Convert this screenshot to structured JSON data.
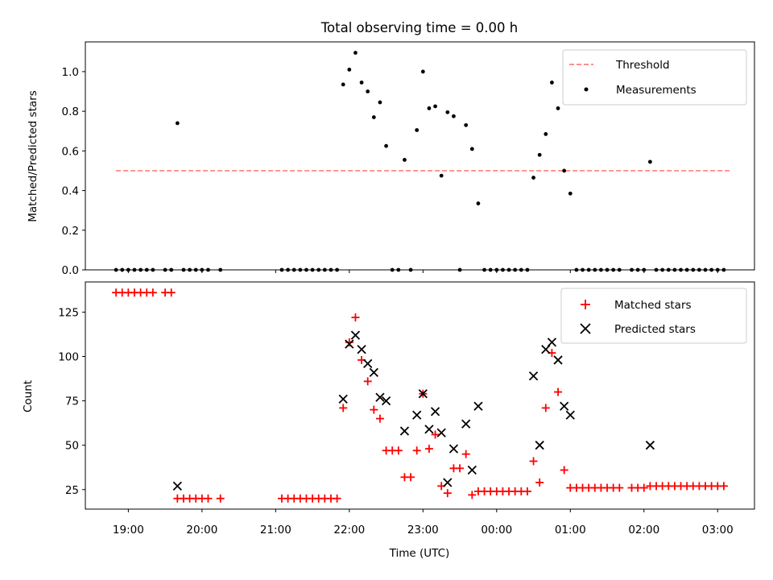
{
  "chart_data": [
    {
      "type": "scatter",
      "title": "Total observing time = 0.00 h",
      "ylabel": "Matched/Predicted stars",
      "ylim": [
        0,
        1.15
      ],
      "yticks": [
        0.0,
        0.2,
        0.4,
        0.6,
        0.8,
        1.0
      ],
      "ytick_labels": [
        "0.0",
        "0.2",
        "0.4",
        "0.6",
        "0.8",
        "1.0"
      ],
      "threshold": {
        "name": "Threshold",
        "value": 0.5,
        "x_start": "18:50",
        "x_end": "03:10",
        "color": "#ff7f7f",
        "style": "dashed"
      },
      "legend": {
        "position": "upper right",
        "entries": [
          "Threshold",
          "Measurements"
        ]
      },
      "series": [
        {
          "name": "Measurements",
          "marker": "dot",
          "color": "#000000",
          "points": [
            [
              "18:50",
              0
            ],
            [
              "18:55",
              0
            ],
            [
              "19:00",
              0
            ],
            [
              "19:05",
              0
            ],
            [
              "19:10",
              0
            ],
            [
              "19:15",
              0
            ],
            [
              "19:20",
              0
            ],
            [
              "19:30",
              0
            ],
            [
              "19:35",
              0
            ],
            [
              "19:40",
              0.74
            ],
            [
              "19:45",
              0
            ],
            [
              "19:50",
              0
            ],
            [
              "19:55",
              0
            ],
            [
              "20:00",
              0
            ],
            [
              "20:05",
              0
            ],
            [
              "20:15",
              0
            ],
            [
              "21:05",
              0
            ],
            [
              "21:10",
              0
            ],
            [
              "21:15",
              0
            ],
            [
              "21:20",
              0
            ],
            [
              "21:25",
              0
            ],
            [
              "21:30",
              0
            ],
            [
              "21:35",
              0
            ],
            [
              "21:40",
              0
            ],
            [
              "21:45",
              0
            ],
            [
              "21:50",
              0
            ],
            [
              "21:55",
              0.935
            ],
            [
              "22:00",
              1.01
            ],
            [
              "22:05",
              1.095
            ],
            [
              "22:10",
              0.945
            ],
            [
              "22:15",
              0.9
            ],
            [
              "22:20",
              0.77
            ],
            [
              "22:25",
              0.845
            ],
            [
              "22:30",
              0.625
            ],
            [
              "22:35",
              0
            ],
            [
              "22:40",
              0
            ],
            [
              "22:45",
              0.555
            ],
            [
              "22:50",
              0
            ],
            [
              "22:55",
              0.705
            ],
            [
              "23:00",
              1.0
            ],
            [
              "23:05",
              0.815
            ],
            [
              "23:10",
              0.825
            ],
            [
              "23:15",
              0.475
            ],
            [
              "23:20",
              0.795
            ],
            [
              "23:25",
              0.775
            ],
            [
              "23:30",
              0
            ],
            [
              "23:35",
              0.73
            ],
            [
              "23:40",
              0.61
            ],
            [
              "23:45",
              0.335
            ],
            [
              "23:50",
              0
            ],
            [
              "23:55",
              0
            ],
            [
              "00:00",
              0
            ],
            [
              "00:05",
              0
            ],
            [
              "00:10",
              0
            ],
            [
              "00:15",
              0
            ],
            [
              "00:20",
              0
            ],
            [
              "00:25",
              0
            ],
            [
              "00:30",
              0.465
            ],
            [
              "00:35",
              0.58
            ],
            [
              "00:40",
              0.685
            ],
            [
              "00:45",
              0.945
            ],
            [
              "00:50",
              0.815
            ],
            [
              "00:55",
              0.5
            ],
            [
              "01:00",
              0.385
            ],
            [
              "01:05",
              0
            ],
            [
              "01:10",
              0
            ],
            [
              "01:15",
              0
            ],
            [
              "01:20",
              0
            ],
            [
              "01:25",
              0
            ],
            [
              "01:30",
              0
            ],
            [
              "01:35",
              0
            ],
            [
              "01:40",
              0
            ],
            [
              "01:50",
              0
            ],
            [
              "01:55",
              0
            ],
            [
              "02:00",
              0
            ],
            [
              "02:05",
              0.545
            ],
            [
              "02:10",
              0
            ],
            [
              "02:15",
              0
            ],
            [
              "02:20",
              0
            ],
            [
              "02:25",
              0
            ],
            [
              "02:30",
              0
            ],
            [
              "02:35",
              0
            ],
            [
              "02:40",
              0
            ],
            [
              "02:45",
              0
            ],
            [
              "02:50",
              0
            ],
            [
              "02:55",
              0
            ],
            [
              "03:00",
              0
            ],
            [
              "03:05",
              0
            ]
          ]
        }
      ]
    },
    {
      "type": "scatter",
      "xlabel": "Time (UTC)",
      "ylabel": "Count",
      "ylim": [
        14,
        142
      ],
      "yticks": [
        25,
        50,
        75,
        100,
        125
      ],
      "ytick_labels": [
        "25",
        "50",
        "75",
        "100",
        "125"
      ],
      "xlim": [
        "18:25",
        "03:30"
      ],
      "xticks": [
        "19:00",
        "20:00",
        "21:00",
        "22:00",
        "23:00",
        "00:00",
        "01:00",
        "02:00",
        "03:00"
      ],
      "xtick_labels": [
        "19:00",
        "20:00",
        "21:00",
        "22:00",
        "23:00",
        "00:00",
        "01:00",
        "02:00",
        "03:00"
      ],
      "legend": {
        "position": "upper right",
        "entries": [
          "Matched stars",
          "Predicted stars"
        ]
      },
      "series": [
        {
          "name": "Matched stars",
          "marker": "plus",
          "color": "#ff0000",
          "points": [
            [
              "18:50",
              136
            ],
            [
              "18:55",
              136
            ],
            [
              "19:00",
              136
            ],
            [
              "19:05",
              136
            ],
            [
              "19:10",
              136
            ],
            [
              "19:15",
              136
            ],
            [
              "19:20",
              136
            ],
            [
              "19:30",
              136
            ],
            [
              "19:35",
              136
            ],
            [
              "19:40",
              20
            ],
            [
              "19:45",
              20
            ],
            [
              "19:50",
              20
            ],
            [
              "19:55",
              20
            ],
            [
              "20:00",
              20
            ],
            [
              "20:05",
              20
            ],
            [
              "20:15",
              20
            ],
            [
              "21:05",
              20
            ],
            [
              "21:10",
              20
            ],
            [
              "21:15",
              20
            ],
            [
              "21:20",
              20
            ],
            [
              "21:25",
              20
            ],
            [
              "21:30",
              20
            ],
            [
              "21:35",
              20
            ],
            [
              "21:40",
              20
            ],
            [
              "21:45",
              20
            ],
            [
              "21:50",
              20
            ],
            [
              "21:55",
              71
            ],
            [
              "22:00",
              108
            ],
            [
              "22:05",
              122
            ],
            [
              "22:10",
              98
            ],
            [
              "22:15",
              86
            ],
            [
              "22:20",
              70
            ],
            [
              "22:25",
              65
            ],
            [
              "22:30",
              47
            ],
            [
              "22:35",
              47
            ],
            [
              "22:40",
              47
            ],
            [
              "22:45",
              32
            ],
            [
              "22:50",
              32
            ],
            [
              "22:55",
              47
            ],
            [
              "23:00",
              79
            ],
            [
              "23:05",
              48
            ],
            [
              "23:10",
              56
            ],
            [
              "23:15",
              27
            ],
            [
              "23:20",
              23
            ],
            [
              "23:25",
              37
            ],
            [
              "23:30",
              37
            ],
            [
              "23:35",
              45
            ],
            [
              "23:40",
              22
            ],
            [
              "23:45",
              24
            ],
            [
              "23:50",
              24
            ],
            [
              "23:55",
              24
            ],
            [
              "00:00",
              24
            ],
            [
              "00:05",
              24
            ],
            [
              "00:10",
              24
            ],
            [
              "00:15",
              24
            ],
            [
              "00:20",
              24
            ],
            [
              "00:25",
              24
            ],
            [
              "00:30",
              41
            ],
            [
              "00:35",
              29
            ],
            [
              "00:40",
              71
            ],
            [
              "00:45",
              102
            ],
            [
              "00:50",
              80
            ],
            [
              "00:55",
              36
            ],
            [
              "01:00",
              26
            ],
            [
              "01:05",
              26
            ],
            [
              "01:10",
              26
            ],
            [
              "01:15",
              26
            ],
            [
              "01:20",
              26
            ],
            [
              "01:25",
              26
            ],
            [
              "01:30",
              26
            ],
            [
              "01:35",
              26
            ],
            [
              "01:40",
              26
            ],
            [
              "01:50",
              26
            ],
            [
              "01:55",
              26
            ],
            [
              "02:00",
              26
            ],
            [
              "02:05",
              27
            ],
            [
              "02:10",
              27
            ],
            [
              "02:15",
              27
            ],
            [
              "02:20",
              27
            ],
            [
              "02:25",
              27
            ],
            [
              "02:30",
              27
            ],
            [
              "02:35",
              27
            ],
            [
              "02:40",
              27
            ],
            [
              "02:45",
              27
            ],
            [
              "02:50",
              27
            ],
            [
              "02:55",
              27
            ],
            [
              "03:00",
              27
            ],
            [
              "03:05",
              27
            ]
          ]
        },
        {
          "name": "Predicted stars",
          "marker": "x",
          "color": "#000000",
          "points": [
            [
              "19:40",
              27
            ],
            [
              "21:55",
              76
            ],
            [
              "22:00",
              107
            ],
            [
              "22:05",
              112
            ],
            [
              "22:10",
              104
            ],
            [
              "22:15",
              96
            ],
            [
              "22:20",
              91
            ],
            [
              "22:25",
              77
            ],
            [
              "22:30",
              75
            ],
            [
              "22:45",
              58
            ],
            [
              "22:55",
              67
            ],
            [
              "23:00",
              79
            ],
            [
              "23:05",
              59
            ],
            [
              "23:10",
              69
            ],
            [
              "23:15",
              57
            ],
            [
              "23:20",
              29
            ],
            [
              "23:25",
              48
            ],
            [
              "23:35",
              62
            ],
            [
              "23:40",
              36
            ],
            [
              "23:45",
              72
            ],
            [
              "00:30",
              89
            ],
            [
              "00:35",
              50
            ],
            [
              "00:40",
              104
            ],
            [
              "00:45",
              108
            ],
            [
              "00:50",
              98
            ],
            [
              "00:55",
              72
            ],
            [
              "01:00",
              67
            ],
            [
              "02:05",
              50
            ]
          ]
        }
      ]
    }
  ]
}
